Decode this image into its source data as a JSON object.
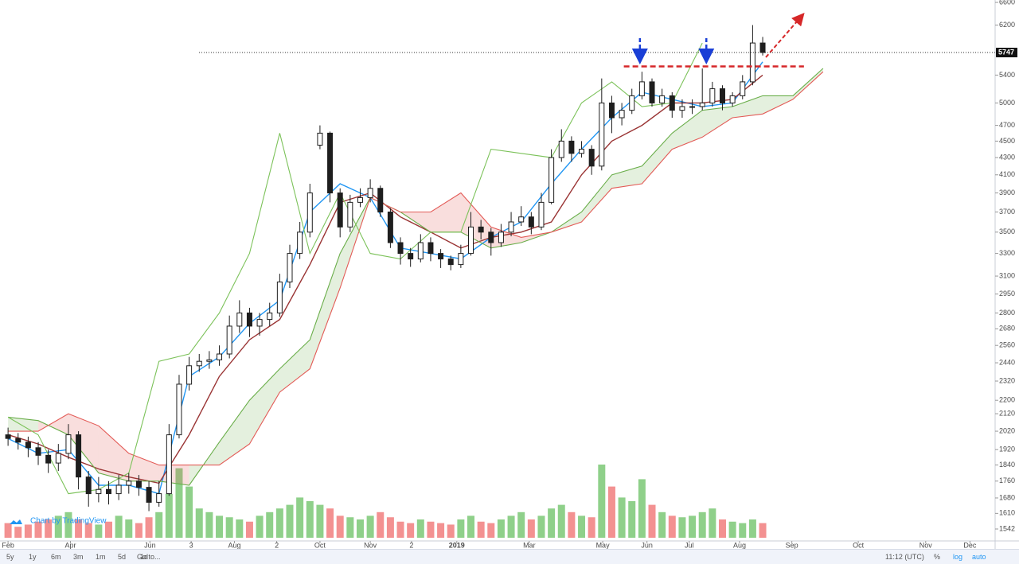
{
  "chart_data": {
    "type": "candlestick",
    "x": [
      0,
      1,
      2,
      3,
      4,
      5,
      6,
      7,
      8,
      9,
      10,
      11,
      12,
      13,
      14,
      15,
      16,
      17,
      18,
      19,
      20,
      21,
      22,
      23,
      24,
      25,
      26,
      27,
      28,
      29,
      30,
      31,
      32,
      33,
      34,
      35,
      36,
      37,
      38,
      39,
      40,
      41,
      42,
      43,
      44,
      45,
      46,
      47,
      48,
      49,
      50,
      51,
      52,
      53,
      54,
      55,
      56,
      57,
      58,
      59,
      60,
      61,
      62,
      63,
      64,
      65,
      66,
      67,
      68,
      69,
      70,
      71,
      72,
      73,
      74,
      75
    ],
    "open": [
      2000,
      1980,
      1960,
      1930,
      1890,
      1850,
      1900,
      2000,
      1780,
      1700,
      1720,
      1700,
      1740,
      1760,
      1730,
      1660,
      1700,
      2000,
      2300,
      2420,
      2450,
      2460,
      2500,
      2700,
      2800,
      2700,
      2750,
      2800,
      3050,
      3300,
      3500,
      4450,
      4600,
      3900,
      3550,
      3800,
      3850,
      3950,
      3700,
      3400,
      3300,
      3250,
      3400,
      3300,
      3250,
      3200,
      3300,
      3550,
      3500,
      3400,
      3500,
      3600,
      3650,
      3550,
      3800,
      4300,
      4500,
      4350,
      4400,
      4200,
      5000,
      4800,
      4900,
      5100,
      5300,
      5000,
      5100,
      4900,
      4950,
      4950,
      5000,
      5200,
      5000,
      5100,
      5300,
      5900
    ],
    "high": [
      2040,
      2010,
      1990,
      1960,
      1920,
      1950,
      2060,
      2020,
      1810,
      1780,
      1760,
      1790,
      1800,
      1790,
      1760,
      1760,
      2060,
      2360,
      2480,
      2500,
      2520,
      2560,
      2780,
      2900,
      2840,
      2800,
      2880,
      3120,
      3380,
      3600,
      4000,
      4700,
      4620,
      3950,
      3880,
      3950,
      4050,
      3980,
      3740,
      3450,
      3350,
      3480,
      3450,
      3340,
      3280,
      3380,
      3700,
      3620,
      3540,
      3580,
      3700,
      3760,
      3700,
      3900,
      4400,
      4650,
      4560,
      4500,
      4450,
      5350,
      5100,
      5000,
      5200,
      5450,
      5350,
      5200,
      5150,
      5050,
      5050,
      5500,
      5300,
      5250,
      5150,
      5400,
      6200,
      6000
    ],
    "low": [
      1940,
      1920,
      1880,
      1840,
      1800,
      1810,
      1870,
      1720,
      1640,
      1660,
      1650,
      1670,
      1700,
      1690,
      1620,
      1640,
      1690,
      1980,
      2260,
      2380,
      2400,
      2420,
      2470,
      2650,
      2620,
      2630,
      2700,
      2770,
      3000,
      3250,
      3450,
      4400,
      3800,
      3450,
      3500,
      3750,
      3800,
      3650,
      3350,
      3200,
      3180,
      3220,
      3230,
      3170,
      3150,
      3170,
      3280,
      3430,
      3280,
      3360,
      3460,
      3560,
      3480,
      3520,
      3780,
      4250,
      4250,
      4300,
      4100,
      4150,
      4600,
      4700,
      4850,
      5050,
      4950,
      4950,
      4800,
      4800,
      4850,
      4900,
      4950,
      4900,
      4950,
      5050,
      5250,
      5700
    ],
    "close": [
      1980,
      1960,
      1930,
      1890,
      1850,
      1900,
      2000,
      1780,
      1700,
      1720,
      1700,
      1740,
      1760,
      1730,
      1660,
      1700,
      2000,
      2300,
      2420,
      2450,
      2460,
      2500,
      2700,
      2800,
      2700,
      2750,
      2800,
      3050,
      3300,
      3500,
      3900,
      4600,
      3900,
      3550,
      3800,
      3850,
      3950,
      3700,
      3400,
      3300,
      3250,
      3400,
      3300,
      3250,
      3200,
      3300,
      3550,
      3500,
      3400,
      3500,
      3600,
      3650,
      3550,
      3800,
      4300,
      4500,
      4350,
      4400,
      4200,
      5000,
      4800,
      4900,
      5100,
      5300,
      5000,
      5100,
      4900,
      4950,
      4950,
      5000,
      5200,
      5000,
      5100,
      5300,
      5900,
      5747
    ],
    "candle_color": "#1e1e1e",
    "volume": {
      "values": [
        20,
        15,
        18,
        22,
        25,
        30,
        35,
        25,
        20,
        18,
        22,
        30,
        25,
        20,
        28,
        35,
        60,
        95,
        70,
        40,
        35,
        30,
        28,
        25,
        22,
        30,
        35,
        40,
        45,
        55,
        50,
        45,
        40,
        30,
        28,
        25,
        30,
        35,
        28,
        22,
        20,
        25,
        22,
        20,
        18,
        25,
        30,
        22,
        20,
        25,
        30,
        35,
        25,
        30,
        40,
        45,
        35,
        30,
        28,
        100,
        70,
        55,
        50,
        80,
        45,
        35,
        30,
        28,
        30,
        35,
        40,
        25,
        22,
        20,
        25,
        20
      ],
      "up_color": "#8fd08a",
      "down_color": "#f39191"
    },
    "indicators": {
      "x": [
        0,
        3,
        6,
        9,
        12,
        15,
        18,
        21,
        24,
        27,
        30,
        33,
        36,
        39,
        42,
        45,
        48,
        51,
        54,
        57,
        60,
        63,
        66,
        69,
        72,
        75,
        78,
        81
      ],
      "series": [
        {
          "color": "#2196f3",
          "values": [
            1980,
            1900,
            1920,
            1740,
            1740,
            1700,
            2350,
            2480,
            2720,
            2900,
            3700,
            4000,
            3850,
            3350,
            3300,
            3250,
            3450,
            3600,
            4000,
            4400,
            4800,
            5150,
            5050,
            4950,
            5000,
            5600,
            null,
            null
          ]
        },
        {
          "color": "#9a3434",
          "values": [
            2000,
            1950,
            1880,
            1820,
            1780,
            1750,
            2000,
            2350,
            2600,
            2750,
            3200,
            3800,
            3900,
            3650,
            3500,
            3350,
            3450,
            3500,
            3600,
            4100,
            4500,
            4700,
            5000,
            5000,
            5050,
            5400,
            null,
            null
          ]
        },
        {
          "color": "#6aae4a",
          "values": [
            2100,
            2080,
            2000,
            1800,
            1760,
            1760,
            1740,
            1960,
            2200,
            2400,
            2600,
            3300,
            3850,
            3700,
            3500,
            3500,
            3350,
            3400,
            3500,
            3700,
            4100,
            4200,
            4600,
            4900,
            4950,
            5100,
            5100,
            5500
          ]
        },
        {
          "color": "#e35b57",
          "values": [
            2020,
            2020,
            2120,
            2050,
            1900,
            1840,
            1840,
            1840,
            1950,
            2250,
            2400,
            3000,
            3850,
            3700,
            3700,
            3900,
            3550,
            3450,
            3500,
            3600,
            3950,
            4000,
            4400,
            4550,
            4800,
            4850,
            5050,
            5450
          ]
        },
        {
          "color": "#7cc25a",
          "values": [
            2100,
            2000,
            1700,
            1720,
            1800,
            2450,
            2500,
            2800,
            3300,
            4600,
            3300,
            3900,
            3300,
            3250,
            3500,
            3500,
            4400,
            4350,
            4300,
            5000,
            5300,
            4950,
            5000,
            5900,
            null,
            null,
            null,
            null
          ]
        }
      ],
      "cloud_up_color": "rgba(106,174,74,0.18)",
      "cloud_down_color": "rgba(227,91,87,0.2)"
    },
    "resistance": {
      "value": 5530,
      "x": [
        61.2,
        79.1
      ],
      "color": "#d62728"
    },
    "signal_arrows": {
      "x": [
        62.8,
        69.4
      ],
      "color": "#1a3fd6"
    },
    "log_scale": true,
    "grid": false,
    "xlim": [
      -0.8,
      98.1
    ],
    "ylim": [
      1492,
      6644
    ],
    "xticks": [
      {
        "value": 0,
        "label": "Feb"
      },
      {
        "value": 6.2,
        "label": "Apr"
      },
      {
        "value": 14.1,
        "label": "Jun"
      },
      {
        "value": 18.2,
        "label": "3"
      },
      {
        "value": 22.5,
        "label": "Aug"
      },
      {
        "value": 26.7,
        "label": "2"
      },
      {
        "value": 31.0,
        "label": "Oct"
      },
      {
        "value": 36.0,
        "label": "Nov"
      },
      {
        "value": 40.1,
        "label": "2"
      },
      {
        "value": 44.6,
        "label": "2019"
      },
      {
        "value": 51.8,
        "label": "Mar"
      },
      {
        "value": 59.1,
        "label": "May"
      },
      {
        "value": 63.5,
        "label": "Jun"
      },
      {
        "value": 67.7,
        "label": "Jul"
      },
      {
        "value": 72.7,
        "label": "Aug"
      },
      {
        "value": 77.9,
        "label": "Sep"
      },
      {
        "value": 84.5,
        "label": "Oct"
      },
      {
        "value": 91.2,
        "label": "Nov"
      },
      {
        "value": 95.6,
        "label": "Dec"
      }
    ],
    "yticks": [
      6600,
      6200,
      5400,
      5000,
      4700,
      4500,
      4300,
      4100,
      3900,
      3700,
      3500,
      3300,
      3100,
      2950,
      2800,
      2680,
      2560,
      2440,
      2320,
      2200,
      2120,
      2020,
      1920,
      1840,
      1760,
      1680,
      1610,
      1542
    ],
    "credit": "Chart by TradingView"
  },
  "toolbar": {
    "ranges": [
      "5y",
      "1y",
      "6m",
      "3m",
      "1m",
      "5d",
      "1d"
    ],
    "goto": "Go to...",
    "time": "11:12 (UTC)",
    "options": [
      "%",
      "log",
      "auto"
    ]
  }
}
